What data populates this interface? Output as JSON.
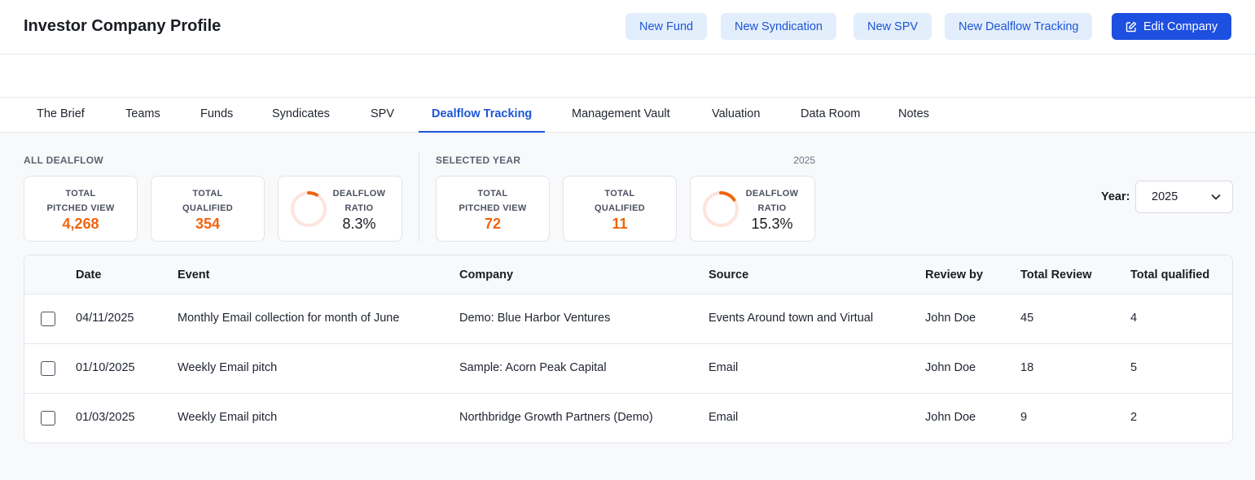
{
  "header": {
    "title": "Investor Company Profile",
    "buttons": {
      "new_fund": "New Fund",
      "new_syndication": "New Syndication",
      "new_spv": "New SPV",
      "new_dealflow": "New Dealflow Tracking",
      "edit_company": "Edit Company"
    }
  },
  "tabs": [
    "The Brief",
    "Teams",
    "Funds",
    "Syndicates",
    "SPV",
    "Dealflow Tracking",
    "Management Vault",
    "Valuation",
    "Data Room",
    "Notes"
  ],
  "active_tab": "Dealflow Tracking",
  "all_dealflow": {
    "label": "ALL DEALFLOW",
    "pitched_label_1": "TOTAL",
    "pitched_label_2": "PITCHED VIEW",
    "pitched_value": "4,268",
    "qualified_label_1": "TOTAL",
    "qualified_label_2": "QUALIFIED",
    "qualified_value": "354",
    "ratio_label_1": "DEALFLOW",
    "ratio_label_2": "RATIO",
    "ratio_value": "8.3%",
    "ratio_fraction": 0.083
  },
  "selected_year": {
    "label": "SELECTED YEAR",
    "year": "2025",
    "pitched_label_1": "TOTAL",
    "pitched_label_2": "PITCHED VIEW",
    "pitched_value": "72",
    "qualified_label_1": "TOTAL",
    "qualified_label_2": "QUALIFIED",
    "qualified_value": "11",
    "ratio_label_1": "DEALFLOW",
    "ratio_label_2": "RATIO",
    "ratio_value": "15.3%",
    "ratio_fraction": 0.153
  },
  "year_filter": {
    "label": "Year:",
    "selected": "2025"
  },
  "table": {
    "columns": [
      "Date",
      "Event",
      "Company",
      "Source",
      "Review by",
      "Total Review",
      "Total qualified"
    ],
    "rows": [
      [
        "04/11/2025",
        "Monthly Email collection for month of June",
        "Demo: Blue Harbor Ventures",
        "Events Around town and Virtual",
        "John Doe",
        "45",
        "4"
      ],
      [
        "01/10/2025",
        "Weekly Email pitch",
        "Sample: Acorn Peak Capital",
        "Email",
        "John Doe",
        "18",
        "5"
      ],
      [
        "01/03/2025",
        "Weekly Email pitch",
        "Northbridge Growth Partners (Demo)",
        "Email",
        "John Doe",
        "9",
        "2"
      ]
    ]
  },
  "colors": {
    "accent": "#1d55d6",
    "primary_button": "#1d4fe0",
    "metric": "#f0640f",
    "donut_track": "#fde4dc"
  }
}
